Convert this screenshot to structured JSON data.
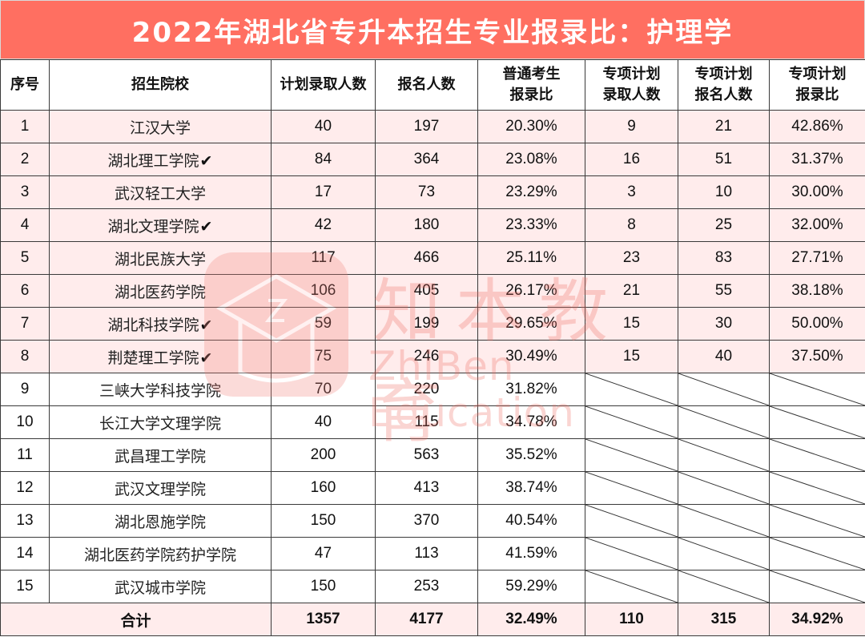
{
  "title": "2022年湖北省专升本招生专业报录比：护理学",
  "colors": {
    "title_bg": "#FF6F61",
    "title_text": "#FFFFFF",
    "highlight_row_bg": "#FFECEC",
    "border": "#3A3A3A"
  },
  "columns": [
    "序号",
    "招生院校",
    "计划录取人数",
    "报名人数",
    "普通考生\n报录比",
    "专项计划\n录取人数",
    "专项计划\n报名人数",
    "专项计划\n报录比"
  ],
  "column_lines": [
    [
      "序号"
    ],
    [
      "招生院校"
    ],
    [
      "计划录取人数"
    ],
    [
      "报名人数"
    ],
    [
      "普通考生",
      "报录比"
    ],
    [
      "专项计划",
      "录取人数"
    ],
    [
      "专项计划",
      "报名人数"
    ],
    [
      "专项计划",
      "报录比"
    ]
  ],
  "check_mark": "✔",
  "rows": [
    {
      "no": "1",
      "school": "江汉大学",
      "checked": false,
      "plan": "40",
      "applicants": "197",
      "ratio": "20.30%",
      "special_plan": "9",
      "special_applicants": "21",
      "special_ratio": "42.86%"
    },
    {
      "no": "2",
      "school": "湖北理工学院",
      "checked": true,
      "plan": "84",
      "applicants": "364",
      "ratio": "23.08%",
      "special_plan": "16",
      "special_applicants": "51",
      "special_ratio": "31.37%"
    },
    {
      "no": "3",
      "school": "武汉轻工大学",
      "checked": false,
      "plan": "17",
      "applicants": "73",
      "ratio": "23.29%",
      "special_plan": "3",
      "special_applicants": "10",
      "special_ratio": "30.00%"
    },
    {
      "no": "4",
      "school": "湖北文理学院",
      "checked": true,
      "plan": "42",
      "applicants": "180",
      "ratio": "23.33%",
      "special_plan": "8",
      "special_applicants": "25",
      "special_ratio": "32.00%"
    },
    {
      "no": "5",
      "school": "湖北民族大学",
      "checked": false,
      "plan": "117",
      "applicants": "466",
      "ratio": "25.11%",
      "special_plan": "23",
      "special_applicants": "83",
      "special_ratio": "27.71%"
    },
    {
      "no": "6",
      "school": "湖北医药学院",
      "checked": false,
      "plan": "106",
      "applicants": "405",
      "ratio": "26.17%",
      "special_plan": "21",
      "special_applicants": "55",
      "special_ratio": "38.18%"
    },
    {
      "no": "7",
      "school": "湖北科技学院",
      "checked": true,
      "plan": "59",
      "applicants": "199",
      "ratio": "29.65%",
      "special_plan": "15",
      "special_applicants": "30",
      "special_ratio": "50.00%"
    },
    {
      "no": "8",
      "school": "荆楚理工学院",
      "checked": true,
      "plan": "75",
      "applicants": "246",
      "ratio": "30.49%",
      "special_plan": "15",
      "special_applicants": "40",
      "special_ratio": "37.50%"
    },
    {
      "no": "9",
      "school": "三峡大学科技学院",
      "checked": false,
      "plan": "70",
      "applicants": "220",
      "ratio": "31.82%"
    },
    {
      "no": "10",
      "school": "长江大学文理学院",
      "checked": false,
      "plan": "40",
      "applicants": "115",
      "ratio": "34.78%"
    },
    {
      "no": "11",
      "school": "武昌理工学院",
      "checked": false,
      "plan": "200",
      "applicants": "563",
      "ratio": "35.52%"
    },
    {
      "no": "12",
      "school": "武汉文理学院",
      "checked": false,
      "plan": "160",
      "applicants": "413",
      "ratio": "38.74%"
    },
    {
      "no": "13",
      "school": "湖北恩施学院",
      "checked": false,
      "plan": "150",
      "applicants": "370",
      "ratio": "40.54%"
    },
    {
      "no": "14",
      "school": "湖北医药学院药护学院",
      "checked": false,
      "plan": "47",
      "applicants": "113",
      "ratio": "41.59%"
    },
    {
      "no": "15",
      "school": "武汉城市学院",
      "checked": false,
      "plan": "150",
      "applicants": "253",
      "ratio": "59.29%"
    }
  ],
  "total": {
    "label": "合计",
    "plan": "1357",
    "applicants": "4177",
    "ratio": "32.49%",
    "special_plan": "110",
    "special_applicants": "315",
    "special_ratio": "34.92%"
  },
  "watermark": {
    "cn": "知本教育",
    "en": "ZhiBen Education"
  }
}
